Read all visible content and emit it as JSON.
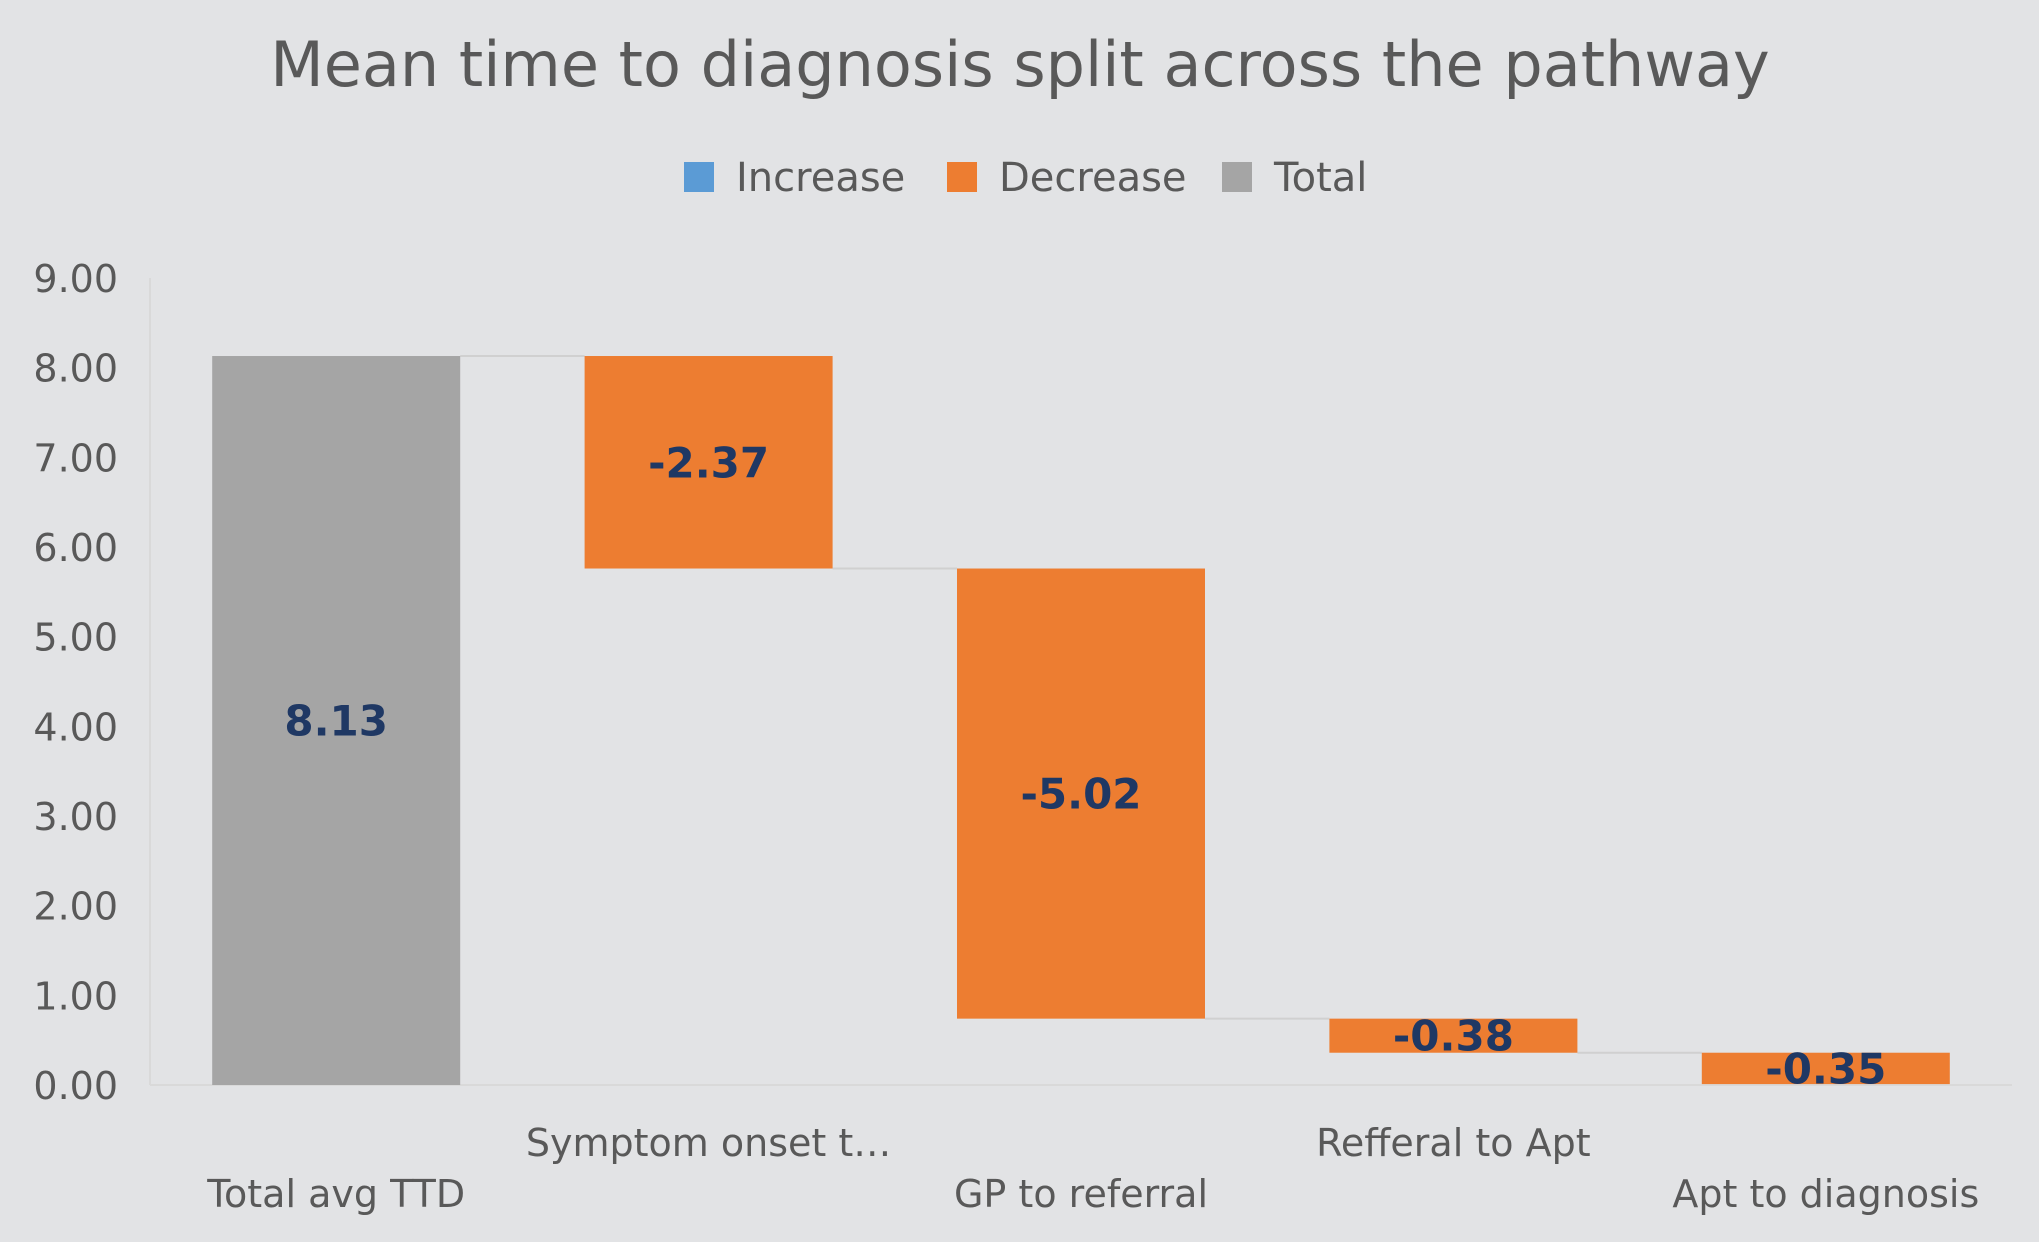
{
  "chart_data": {
    "type": "bar",
    "subtype": "waterfall",
    "title": "Mean time to diagnosis split across the pathway",
    "legend": {
      "placement": "top",
      "entries": [
        {
          "label": "Increase",
          "color": "#5b9bd5"
        },
        {
          "label": "Decrease",
          "color": "#ed7d31"
        },
        {
          "label": "Total",
          "color": "#a5a5a5"
        }
      ]
    },
    "categories": [
      "Total avg TTD",
      "Symptom onset t…",
      "GP to referral",
      "Refferal to Apt",
      "Apt to diagnosis"
    ],
    "values": [
      8.13,
      -2.37,
      -5.02,
      -0.38,
      -0.35
    ],
    "bar_kinds": [
      "total",
      "decrease",
      "decrease",
      "decrease",
      "decrease"
    ],
    "data_labels": [
      "8.13",
      "-2.37",
      "-5.02",
      "-0.38",
      "-0.35"
    ],
    "y_ticks": [
      "0.00",
      "1.00",
      "2.00",
      "3.00",
      "4.00",
      "5.00",
      "6.00",
      "7.00",
      "8.00",
      "9.00"
    ],
    "ylim": [
      0,
      9
    ],
    "xlabel": "",
    "ylabel": "",
    "grid": false,
    "colors": {
      "background": "#e2e3e5",
      "increase": "#5b9bd5",
      "decrease": "#ed7d31",
      "total": "#a5a5a5",
      "label": "#1f3864",
      "connector": "#d0d0d0"
    }
  }
}
